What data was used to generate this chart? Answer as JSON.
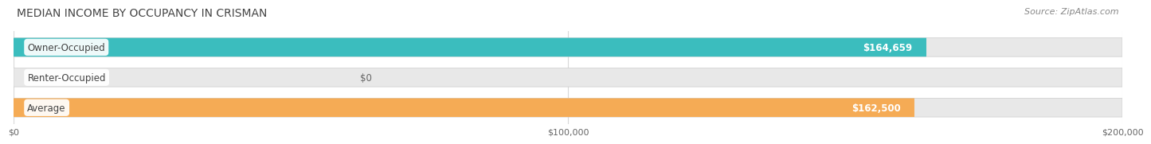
{
  "title": "MEDIAN INCOME BY OCCUPANCY IN CRISMAN",
  "source": "Source: ZipAtlas.com",
  "categories": [
    "Owner-Occupied",
    "Renter-Occupied",
    "Average"
  ],
  "values": [
    164659,
    0,
    162500
  ],
  "bar_colors": [
    "#3bbdbe",
    "#b89fcc",
    "#f5ab55"
  ],
  "bar_labels": [
    "$164,659",
    "$0",
    "$162,500"
  ],
  "xlim": [
    0,
    200000
  ],
  "xticks": [
    0,
    100000,
    200000
  ],
  "xtick_labels": [
    "$0",
    "$100,000",
    "$200,000"
  ],
  "background_color": "#ffffff",
  "bar_background_color": "#e8e8e8",
  "grid_color": "#d8d8d8",
  "title_color": "#444444",
  "source_color": "#888888",
  "label_text_color": "#444444",
  "value_label_color": "#ffffff",
  "title_fontsize": 10,
  "label_fontsize": 8.5,
  "source_fontsize": 8,
  "tick_fontsize": 8
}
